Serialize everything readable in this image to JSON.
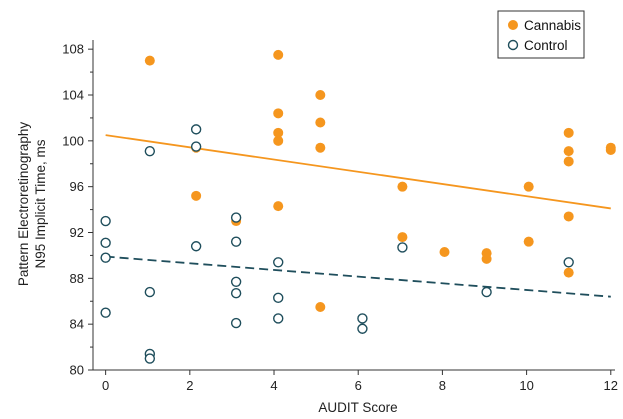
{
  "chart_data": {
    "type": "scatter",
    "xlabel": "AUDIT Score",
    "ylabel_lines": [
      "Pattern Electroretinography",
      "N95 Implicit Time, ms"
    ],
    "xlim": [
      -0.3,
      12.1
    ],
    "ylim": [
      80,
      108.8
    ],
    "xticks": [
      0,
      2,
      4,
      6,
      8,
      10,
      12
    ],
    "yticks": [
      80,
      84,
      88,
      92,
      96,
      100,
      104,
      108
    ],
    "legend_position": "top-right",
    "series": [
      {
        "name": "Cannabis",
        "marker": "filled-circle",
        "color": "#f5961e",
        "points": [
          [
            1.05,
            107
          ],
          [
            2.15,
            99.4
          ],
          [
            2.15,
            95.2
          ],
          [
            3.1,
            93
          ],
          [
            4.1,
            107.5
          ],
          [
            4.1,
            102.4
          ],
          [
            4.1,
            100.7
          ],
          [
            4.1,
            100
          ],
          [
            4.1,
            94.3
          ],
          [
            5.1,
            104
          ],
          [
            5.1,
            101.6
          ],
          [
            5.1,
            99.4
          ],
          [
            5.1,
            85.5
          ],
          [
            7.05,
            96
          ],
          [
            7.05,
            91.6
          ],
          [
            8.05,
            90.3
          ],
          [
            9.05,
            90.2
          ],
          [
            9.05,
            89.7
          ],
          [
            10.05,
            96
          ],
          [
            10.05,
            91.2
          ],
          [
            11.0,
            100.7
          ],
          [
            11.0,
            99.1
          ],
          [
            11.0,
            98.2
          ],
          [
            11.0,
            93.4
          ],
          [
            11.0,
            88.5
          ],
          [
            12.0,
            99.4
          ],
          [
            12.0,
            99.2
          ]
        ],
        "trend": {
          "x": [
            0,
            12
          ],
          "y": [
            100.5,
            94.1
          ],
          "style": "solid"
        }
      },
      {
        "name": "Control",
        "marker": "open-circle",
        "color": "#1f4e5c",
        "points": [
          [
            0,
            93
          ],
          [
            0,
            91.1
          ],
          [
            0,
            89.8
          ],
          [
            0,
            85
          ],
          [
            1.05,
            99.1
          ],
          [
            1.05,
            86.8
          ],
          [
            1.05,
            81.4
          ],
          [
            1.05,
            81
          ],
          [
            2.15,
            101
          ],
          [
            2.15,
            99.5
          ],
          [
            2.15,
            90.8
          ],
          [
            3.1,
            93.3
          ],
          [
            3.1,
            91.2
          ],
          [
            3.1,
            87.7
          ],
          [
            3.1,
            86.7
          ],
          [
            3.1,
            84.1
          ],
          [
            4.1,
            89.4
          ],
          [
            4.1,
            86.3
          ],
          [
            4.1,
            84.5
          ],
          [
            6.1,
            84.5
          ],
          [
            6.1,
            83.6
          ],
          [
            7.05,
            90.7
          ],
          [
            9.05,
            86.8
          ],
          [
            11.0,
            89.4
          ]
        ],
        "trend": {
          "x": [
            0,
            12
          ],
          "y": [
            89.9,
            86.4
          ],
          "style": "dashed"
        }
      }
    ]
  }
}
